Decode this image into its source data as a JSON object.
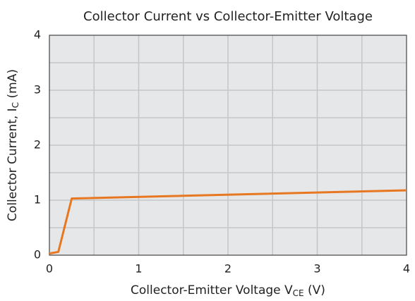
{
  "chart_data": {
    "type": "line",
    "title": "Collector Current vs Collector-Emitter Voltage",
    "xlabel": {
      "text": "Collector-Emitter Voltage V",
      "sub": "CE",
      "tail": " (V)"
    },
    "ylabel": {
      "text": "Collector Current, I",
      "sub": "C",
      "tail": " (mA)"
    },
    "x": [
      0,
      0.1,
      0.25,
      4
    ],
    "series": [
      {
        "name": "Ic",
        "color": "#e87722",
        "values": [
          0.03,
          0.06,
          1.03,
          1.18
        ]
      }
    ],
    "xlim": [
      0,
      4
    ],
    "ylim": [
      0,
      4
    ],
    "xticks": [
      0,
      1,
      2,
      3,
      4
    ],
    "yticks": [
      0,
      1,
      2,
      3,
      4
    ],
    "xgrid": [
      0.5,
      1,
      1.5,
      2,
      2.5,
      3,
      3.5
    ],
    "ygrid": [
      0.5,
      1,
      1.5,
      2,
      2.5,
      3,
      3.5
    ],
    "grid": true
  }
}
